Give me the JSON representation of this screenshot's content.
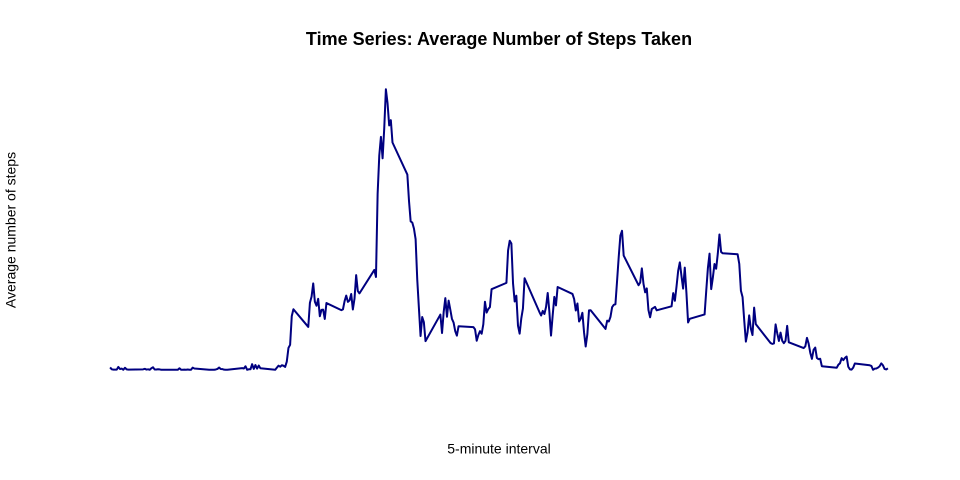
{
  "chart_data": {
    "type": "line",
    "title": "Time Series: Average Number of Steps Taken",
    "x_label": "5-minute interval",
    "y_label": "Average number of steps",
    "xlim": [
      -94.2,
      2449.2
    ],
    "ylim": [
      -8.25,
      214.42
    ],
    "x": [
      0,
      5,
      10,
      15,
      20,
      25,
      30,
      35,
      40,
      45,
      50,
      55,
      100,
      105,
      110,
      115,
      120,
      125,
      130,
      135,
      140,
      145,
      150,
      155,
      200,
      205,
      210,
      215,
      220,
      225,
      230,
      235,
      240,
      245,
      250,
      255,
      300,
      305,
      310,
      315,
      320,
      325,
      330,
      335,
      340,
      345,
      350,
      355,
      400,
      405,
      410,
      415,
      420,
      425,
      430,
      435,
      440,
      445,
      450,
      455,
      500,
      505,
      510,
      515,
      520,
      525,
      530,
      535,
      540,
      545,
      550,
      555,
      600,
      605,
      610,
      615,
      620,
      625,
      630,
      635,
      640,
      645,
      650,
      655,
      700,
      705,
      710,
      715,
      720,
      725,
      730,
      735,
      740,
      745,
      750,
      755,
      800,
      805,
      810,
      815,
      820,
      825,
      830,
      835,
      840,
      845,
      850,
      855,
      900,
      905,
      910,
      915,
      920,
      925,
      930,
      935,
      940,
      945,
      950,
      955,
      1000,
      1005,
      1010,
      1015,
      1020,
      1025,
      1030,
      1035,
      1040,
      1045,
      1050,
      1055,
      1100,
      1105,
      1110,
      1115,
      1120,
      1125,
      1130,
      1135,
      1140,
      1145,
      1150,
      1155,
      1200,
      1205,
      1210,
      1215,
      1220,
      1225,
      1230,
      1235,
      1240,
      1245,
      1250,
      1255,
      1300,
      1305,
      1310,
      1315,
      1320,
      1325,
      1330,
      1335,
      1340,
      1345,
      1350,
      1355,
      1400,
      1405,
      1410,
      1415,
      1420,
      1425,
      1430,
      1435,
      1440,
      1445,
      1450,
      1455,
      1500,
      1505,
      1510,
      1515,
      1520,
      1525,
      1530,
      1535,
      1540,
      1545,
      1550,
      1555,
      1600,
      1605,
      1610,
      1615,
      1620,
      1625,
      1630,
      1635,
      1640,
      1645,
      1650,
      1655,
      1700,
      1705,
      1710,
      1715,
      1720,
      1725,
      1730,
      1735,
      1740,
      1745,
      1750,
      1755,
      1800,
      1805,
      1810,
      1815,
      1820,
      1825,
      1830,
      1835,
      1840,
      1845,
      1850,
      1855,
      1900,
      1905,
      1910,
      1915,
      1920,
      1925,
      1930,
      1935,
      1940,
      1945,
      1950,
      1955,
      2000,
      2005,
      2010,
      2015,
      2020,
      2025,
      2030,
      2035,
      2040,
      2045,
      2050,
      2055,
      2100,
      2105,
      2110,
      2115,
      2120,
      2125,
      2130,
      2135,
      2140,
      2145,
      2150,
      2155,
      2200,
      2205,
      2210,
      2215,
      2220,
      2225,
      2230,
      2235,
      2240,
      2245,
      2250,
      2255,
      2300,
      2305,
      2310,
      2315,
      2320,
      2325,
      2330,
      2335,
      2340,
      2345,
      2350,
      2355
    ],
    "series": [
      {
        "color": "#000080",
        "values": [
          1.72,
          0.34,
          0.13,
          0.15,
          0.08,
          2.09,
          0.53,
          0.87,
          0,
          1.47,
          0.3,
          0.13,
          0.32,
          0.68,
          0.15,
          0.34,
          0,
          1.11,
          1.83,
          0.17,
          0.17,
          0.38,
          0.26,
          0,
          0,
          0,
          1.13,
          0,
          0,
          0.13,
          0,
          0.23,
          0,
          0,
          1.55,
          0.94,
          0,
          0,
          0,
          0,
          0.21,
          0.62,
          1.62,
          0.58,
          0.49,
          0.08,
          0,
          0,
          1.19,
          0.94,
          2.57,
          0,
          0.34,
          0.36,
          4.11,
          0.66,
          3.49,
          0.83,
          3.11,
          1.11,
          0,
          1.57,
          3,
          2.25,
          3.32,
          2.96,
          2.09,
          6.06,
          16.02,
          18.34,
          39.45,
          44.49,
          31.49,
          49.26,
          53.77,
          63.45,
          49.96,
          47.08,
          52.15,
          39.34,
          44.02,
          44.17,
          37.36,
          49.04,
          43.81,
          44.38,
          50.51,
          54.51,
          49.92,
          50.98,
          55.68,
          44.32,
          52.26,
          69.55,
          57.85,
          56.15,
          73.38,
          68.21,
          129.43,
          157.53,
          171.15,
          155.4,
          177.3,
          206.17,
          195.92,
          179.57,
          183.4,
          167.02,
          143.45,
          124.04,
          109.11,
          108.11,
          103.72,
          95.96,
          66.21,
          45.23,
          24.79,
          38.75,
          34.98,
          21.06,
          40.57,
          26.98,
          42.42,
          52.66,
          38.92,
          50.79,
          44.28,
          37.42,
          34.7,
          28.34,
          25.09,
          31.94,
          31.36,
          29.68,
          21.32,
          25.55,
          28.38,
          26.47,
          33.43,
          49.98,
          42.04,
          44.6,
          46.04,
          59.19,
          63.87,
          87.7,
          94.85,
          92.77,
          63.4,
          50.17,
          54.47,
          32.42,
          26.53,
          37.74,
          45.06,
          67.28,
          42.34,
          39.89,
          43.26,
          40.98,
          46.25,
          56.43,
          42.75,
          25.13,
          39.96,
          53.55,
          47.32,
          60.81,
          55.75,
          51.96,
          43.58,
          48.7,
          35.47,
          37.55,
          41.85,
          27.51,
          17.11,
          26.08,
          43.62,
          43.77,
          30.02,
          36.08,
          35.49,
          38.85,
          45.96,
          47.75,
          48.13,
          65.32,
          82.91,
          98.66,
          102.11,
          83.96,
          62.13,
          64.13,
          74.55,
          63.17,
          56.91,
          59.77,
          43.87,
          38.57,
          44.66,
          45.45,
          46.21,
          43.68,
          46.62,
          56.3,
          50.72,
          61.23,
          72.72,
          78.94,
          68.94,
          59.66,
          75.09,
          56.51,
          34.77,
          37.45,
          40.68,
          58.02,
          74.7,
          85.32,
          59.26,
          67.77,
          77.7,
          74.25,
          85.34,
          99.45,
          86.58,
          85.6,
          84.87,
          77.83,
          58.04,
          53.36,
          36.33,
          20.72,
          27.4,
          40.02,
          30.21,
          25.55,
          45.66,
          33.53,
          19.62,
          19.02,
          19.34,
          33.34,
          26.81,
          21.17,
          27.3,
          21.34,
          19.55,
          21.32,
          32.3,
          20.15,
          15.94,
          17.23,
          23.45,
          19.25,
          12.45,
          8.02,
          14.66,
          16.3,
          8.68,
          7.79,
          8.13,
          2.62,
          1.45,
          3.68,
          4.81,
          8.51,
          7.08,
          8.7,
          9.75,
          2.21,
          0.32,
          0.11,
          1.6,
          4.6,
          3.3,
          2.85,
          0,
          0.83,
          0.96,
          1.58,
          2.6,
          4.7,
          3.3,
          0.64,
          0.23,
          1.08
        ]
      }
    ]
  }
}
